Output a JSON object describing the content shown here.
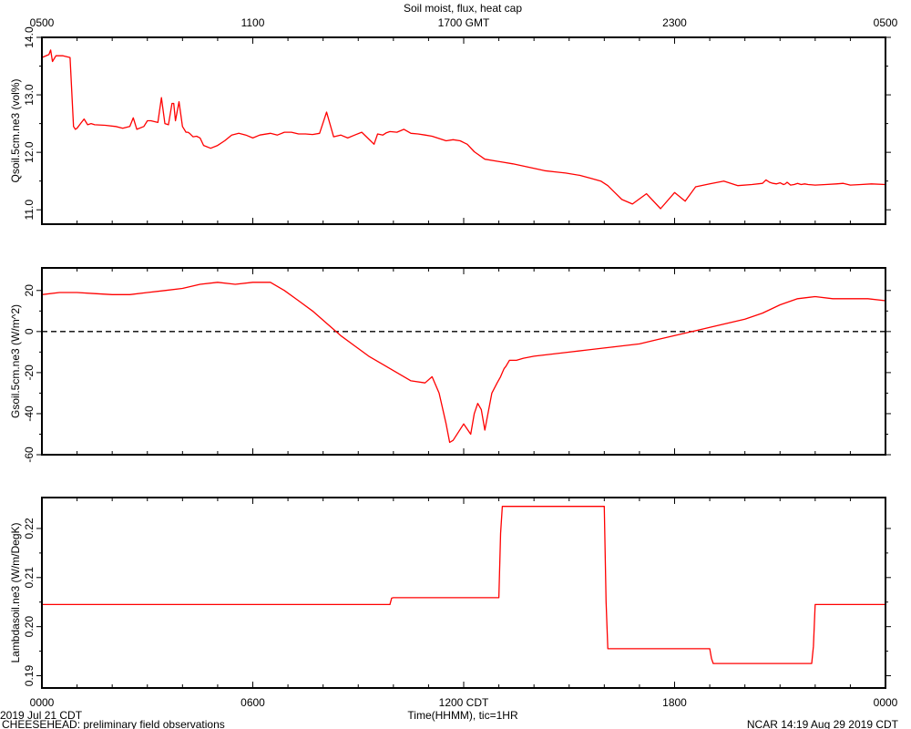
{
  "title": "Soil moist, flux, heat cap",
  "top_axis": {
    "ticks": [
      {
        "h": 5,
        "label": "0500"
      },
      {
        "h": 11,
        "label": "1100"
      },
      {
        "h": 17,
        "label": "1700 GMT"
      },
      {
        "h": 23,
        "label": "2300"
      },
      {
        "h": 29,
        "label": "0500"
      }
    ]
  },
  "bottom_axis": {
    "ticks": [
      {
        "h": 0,
        "label": "0000"
      },
      {
        "h": 6,
        "label": "0600"
      },
      {
        "h": 12,
        "label": "1200 CDT"
      },
      {
        "h": 18,
        "label": "1800"
      },
      {
        "h": 24,
        "label": "0000"
      }
    ],
    "xlabel": "Time(HHMM), tic=1HR"
  },
  "footer": {
    "date": "2019 Jul 21 CDT",
    "project": "CHEESEHEAD: preliminary field observations",
    "credit": "NCAR 14:19 Aug 29 2019 CDT"
  },
  "series_color": "#ff0000",
  "chart_data": [
    {
      "type": "line",
      "ylabel": "Qsoil.5cm.ne3 (vol%)",
      "xlim": [
        0,
        24
      ],
      "ylim": [
        10.75,
        14.0
      ],
      "yticks": [
        11.0,
        12.0,
        13.0,
        14.0
      ],
      "ytick_labels": [
        "11.0",
        "12.0",
        "13.0",
        "14.0"
      ],
      "x": [
        0,
        0.2,
        0.25,
        0.3,
        0.4,
        0.5,
        0.6,
        0.8,
        0.9,
        0.95,
        1.0,
        1.1,
        1.2,
        1.3,
        1.4,
        1.5,
        1.8,
        2.1,
        2.3,
        2.5,
        2.6,
        2.7,
        2.9,
        3.0,
        3.1,
        3.3,
        3.4,
        3.5,
        3.6,
        3.7,
        3.75,
        3.8,
        3.9,
        4.0,
        4.1,
        4.15,
        4.2,
        4.3,
        4.4,
        4.5,
        4.6,
        4.8,
        5.0,
        5.2,
        5.4,
        5.6,
        5.8,
        6.0,
        6.2,
        6.5,
        6.7,
        6.9,
        7.1,
        7.3,
        7.5,
        7.7,
        7.9,
        8.1,
        8.3,
        8.5,
        8.7,
        8.9,
        9.1,
        9.3,
        9.45,
        9.55,
        9.7,
        9.8,
        9.9,
        10.1,
        10.3,
        10.5,
        10.7,
        10.9,
        11.1,
        11.3,
        11.5,
        11.7,
        11.9,
        12.1,
        12.3,
        12.6,
        12.9,
        13.1,
        13.4,
        13.7,
        14.0,
        14.3,
        14.6,
        14.9,
        15.3,
        15.6,
        15.9,
        16.1,
        16.3,
        16.5,
        16.8,
        17.2,
        17.6,
        18.0,
        18.3,
        18.6,
        19.0,
        19.4,
        19.8,
        20.2,
        20.5,
        20.6,
        20.7,
        20.8,
        20.9,
        21.0,
        21.1,
        21.15,
        21.2,
        21.3,
        21.4,
        21.5,
        21.6,
        21.7,
        21.8,
        22.0,
        22.3,
        22.6,
        22.8,
        23.0,
        23.3,
        23.6,
        24.0
      ],
      "y": [
        13.65,
        13.7,
        13.78,
        13.58,
        13.68,
        13.68,
        13.68,
        13.65,
        12.45,
        12.4,
        12.42,
        12.5,
        12.58,
        12.48,
        12.5,
        12.48,
        12.47,
        12.45,
        12.42,
        12.45,
        12.6,
        12.4,
        12.45,
        12.55,
        12.55,
        12.52,
        12.95,
        12.5,
        12.48,
        12.85,
        12.85,
        12.55,
        12.88,
        12.45,
        12.35,
        12.35,
        12.33,
        12.27,
        12.28,
        12.25,
        12.12,
        12.07,
        12.12,
        12.2,
        12.3,
        12.33,
        12.3,
        12.25,
        12.3,
        12.33,
        12.3,
        12.35,
        12.35,
        12.32,
        12.32,
        12.31,
        12.33,
        12.7,
        12.27,
        12.3,
        12.25,
        12.3,
        12.35,
        12.23,
        12.14,
        12.32,
        12.3,
        12.34,
        12.36,
        12.35,
        12.4,
        12.33,
        12.32,
        12.3,
        12.28,
        12.24,
        12.2,
        12.22,
        12.2,
        12.14,
        12.01,
        11.88,
        11.85,
        11.83,
        11.8,
        11.76,
        11.72,
        11.68,
        11.66,
        11.64,
        11.6,
        11.55,
        11.5,
        11.42,
        11.3,
        11.18,
        11.1,
        11.28,
        11.02,
        11.3,
        11.15,
        11.4,
        11.45,
        11.5,
        11.42,
        11.44,
        11.46,
        11.52,
        11.48,
        11.46,
        11.45,
        11.47,
        11.44,
        11.45,
        11.48,
        11.43,
        11.44,
        11.46,
        11.44,
        11.45,
        11.44,
        11.43,
        11.44,
        11.45,
        11.46,
        11.43,
        11.44,
        11.45,
        11.44
      ],
      "zero_line": false
    },
    {
      "type": "line",
      "ylabel": "Gsoil.5cm.ne3 (W/m^2)",
      "xlim": [
        0,
        24
      ],
      "ylim": [
        -60,
        31
      ],
      "yticks": [
        -60,
        -40,
        -20,
        0,
        20
      ],
      "ytick_labels": [
        "-60",
        "-40",
        "-20",
        "0",
        "20"
      ],
      "x": [
        0,
        0.5,
        1.0,
        1.5,
        2.0,
        2.5,
        3.0,
        3.5,
        4.0,
        4.5,
        5.0,
        5.5,
        6.0,
        6.5,
        6.9,
        7.3,
        7.7,
        8.1,
        8.5,
        8.9,
        9.3,
        9.7,
        10.1,
        10.5,
        10.9,
        11.1,
        11.3,
        11.5,
        11.6,
        11.7,
        12.0,
        12.2,
        12.3,
        12.4,
        12.5,
        12.6,
        12.8,
        12.95,
        13.05,
        13.1,
        13.15,
        13.2,
        13.3,
        13.5,
        13.7,
        14.0,
        14.5,
        15.0,
        15.5,
        16.0,
        16.5,
        17.0,
        17.5,
        18.0,
        18.5,
        19.0,
        19.5,
        20.0,
        20.5,
        21.0,
        21.5,
        22.0,
        22.5,
        23.0,
        23.5,
        24.0
      ],
      "y": [
        18,
        19,
        19,
        18.5,
        18,
        18,
        19,
        20,
        21,
        23,
        24,
        23,
        24,
        24,
        20,
        15,
        10,
        4,
        -2,
        -7,
        -12,
        -16,
        -20,
        -24,
        -25,
        -22,
        -30,
        -45,
        -54,
        -53,
        -45,
        -50,
        -40,
        -35,
        -38,
        -48,
        -30,
        -25,
        -22,
        -20,
        -18,
        -17,
        -14,
        -14,
        -13,
        -12,
        -11,
        -10,
        -9,
        -8,
        -7,
        -6,
        -4,
        -2,
        0,
        2,
        4,
        6,
        9,
        13,
        16,
        17,
        16,
        16,
        16,
        15
      ],
      "zero_line": true
    },
    {
      "type": "line",
      "ylabel": "Lambdasoil.ne3 (W/m/DegK)",
      "xlim": [
        0,
        24
      ],
      "ylim": [
        0.1875,
        0.2263
      ],
      "yticks": [
        0.19,
        0.2,
        0.21,
        0.22
      ],
      "ytick_labels": [
        "0.19",
        "0.20",
        "0.21",
        "0.22"
      ],
      "x": [
        0,
        9.9,
        9.95,
        10.0,
        13.0,
        13.05,
        13.1,
        16.0,
        16.05,
        16.1,
        19.0,
        19.05,
        19.1,
        21.9,
        21.95,
        22.0,
        24.0
      ],
      "y": [
        0.2045,
        0.2045,
        0.2058,
        0.2059,
        0.2059,
        0.219,
        0.2245,
        0.2245,
        0.205,
        0.1955,
        0.1955,
        0.1935,
        0.1925,
        0.1925,
        0.196,
        0.2045,
        0.2045
      ],
      "zero_line": false
    }
  ]
}
